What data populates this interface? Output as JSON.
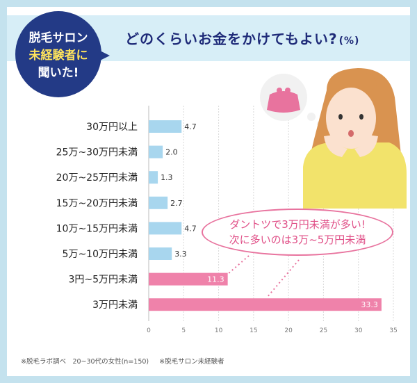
{
  "badge": {
    "line1": "脱毛サロン",
    "line2": "未経験者に",
    "line3": "聞いた!"
  },
  "callout": {
    "line1": "ダントツで3万円未満が多い!",
    "line2": "次に多いのは3万~5万円未満"
  },
  "footnote": {
    "source": "※脱毛ラボ調べ　20~30代の女性(n=150)",
    "note": "※脱毛サロン未経験者"
  },
  "colors": {
    "blue_bar": "#a8d6ee",
    "pink_bar": "#ef82aa",
    "navy": "#233a86",
    "pink_text": "#e04f87"
  },
  "icons": [
    "purse-icon",
    "woman-illustration"
  ],
  "chart_data": {
    "type": "bar",
    "orientation": "horizontal",
    "title": "どのくらいお金をかけてもよい?",
    "unit": "(%)",
    "categories": [
      "30万円以上",
      "25万~30万円未満",
      "20万~25万円未満",
      "15万~20万円未満",
      "10万~15万円未満",
      "5万~10万円未満",
      "3円~5万円未満",
      "3万円未満"
    ],
    "values": [
      4.7,
      2.0,
      1.3,
      2.7,
      4.7,
      3.3,
      11.3,
      33.3
    ],
    "highlight": [
      false,
      false,
      false,
      false,
      false,
      false,
      true,
      true
    ],
    "xlim": [
      0,
      35
    ],
    "xticks": [
      0,
      5,
      10,
      15,
      20,
      25,
      30,
      35
    ],
    "grid": true
  }
}
